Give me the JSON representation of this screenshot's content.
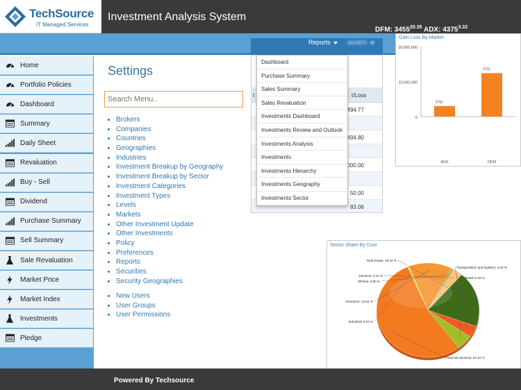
{
  "header": {
    "brand_name": "TechSource",
    "brand_tagline": "IT Managed Services",
    "app_title": "Investment Analysis System",
    "ticker": [
      {
        "label": "DFM:",
        "value": "3455",
        "change": "20.35"
      },
      {
        "label": "ADX:",
        "value": "4375",
        "change": "3.32"
      }
    ]
  },
  "navbar": {
    "reports_label": "Reports",
    "user_label": "alsakhr"
  },
  "sidebar": {
    "items": [
      {
        "label": "Home",
        "icon": "dashboard-gauge-icon"
      },
      {
        "label": "Portfolio Policies",
        "icon": "dashboard-gauge-icon"
      },
      {
        "label": "Dashboard",
        "icon": "dashboard-gauge-icon"
      },
      {
        "label": "Summary",
        "icon": "list-panel-icon"
      },
      {
        "label": "Daily Sheet",
        "icon": "bar-signal-icon"
      },
      {
        "label": "Revaluation",
        "icon": "list-panel-icon"
      },
      {
        "label": "Buy - Sell",
        "icon": "bar-signal-icon"
      },
      {
        "label": "Dividend",
        "icon": "list-panel-icon"
      },
      {
        "label": "Purchase Summary",
        "icon": "bar-signal-icon"
      },
      {
        "label": "Sell Summary",
        "icon": "list-panel-icon"
      },
      {
        "label": "Sale Revaluation",
        "icon": "flask-icon"
      },
      {
        "label": "Market Price",
        "icon": "lightning-icon"
      },
      {
        "label": "Market Index",
        "icon": "lightning-icon"
      },
      {
        "label": "Investments",
        "icon": "flask-icon"
      },
      {
        "label": "Pledge",
        "icon": "list-panel-icon"
      }
    ]
  },
  "main": {
    "page_title": "Settings",
    "search_placeholder": "Search Menu..",
    "settings_links": [
      "Brokers",
      "Companies",
      "Countries",
      "Geographies",
      "Industries",
      "Investment Breakup by Geography",
      "Investment Breakup by Sector",
      "Investment Categories",
      "Investment Types",
      "Levels",
      "Markets",
      "Other Investment Update",
      "Other Investments",
      "Policy",
      "Preferences",
      "Reports",
      "Securities",
      "Security Geographies"
    ],
    "user_links": [
      "New Users",
      "User Groups",
      "User Permissions"
    ]
  },
  "table_panel": {
    "header_left": "t P",
    "header_right": "t/Loss",
    "rows": [
      "494.77",
      "",
      "494.80",
      "",
      "000.00",
      "",
      "50.00",
      "83.06"
    ]
  },
  "reports_dropdown": {
    "items": [
      "Dashboard",
      "Purchase Summary",
      "Sales Summary",
      "Sales Revaluation",
      "Investments Dashboard",
      "Investments Review and Outlook",
      "Investments Analysis",
      "Investments",
      "Investments Hierarchy",
      "Investments Geography",
      "Investments Sector"
    ]
  },
  "gain_chart": {
    "title": "Gain Loss By Market",
    "chart_data": {
      "type": "bar",
      "categories": [
        "ADX",
        "DFM"
      ],
      "values": [
        3000000,
        12400000
      ],
      "value_labels": [
        "YTD:",
        "YTD:"
      ],
      "y_ticks": [
        "20,000,000",
        "10,000,000",
        "0"
      ],
      "ylim": [
        0,
        20000000
      ],
      "bar_color": "#f58220"
    }
  },
  "sector_chart": {
    "title": "Sector Share By Cost",
    "chart_data": {
      "type": "pie",
      "slices": [
        {
          "name": "Financial Services",
          "label": "Financial Services: 54.12 %",
          "value": 54.12,
          "color": "#f47a1f"
        },
        {
          "name": "Industrial",
          "label": "Industrial: 0.53 %",
          "value": 0.53,
          "color": "#d9e34a"
        },
        {
          "name": "Insurance",
          "label": "Insurance: 13.61 %",
          "value": 13.61,
          "color": "#f79533"
        },
        {
          "name": "Oil/Gas",
          "label": "Oil/Gas: 0.80 %",
          "value": 0.8,
          "color": "#a8b94a"
        },
        {
          "name": "Services",
          "label": "Services: 3.10 %",
          "value": 3.1,
          "color": "#f9c27a"
        },
        {
          "name": "Real Estate",
          "label": "Real Estate: 19.22 %",
          "value": 19.22,
          "color": "#3d6b1a"
        },
        {
          "name": "Transportation and logistics",
          "label": "Transportation and logistics: 4.02 %",
          "value": 4.02,
          "color": "#f15a22"
        },
        {
          "name": "Retail",
          "label": "Retail: 5.19 %",
          "value": 5.19,
          "color": "#9fbe2a"
        }
      ]
    }
  },
  "footer": {
    "text": "Powered By Techsource"
  }
}
